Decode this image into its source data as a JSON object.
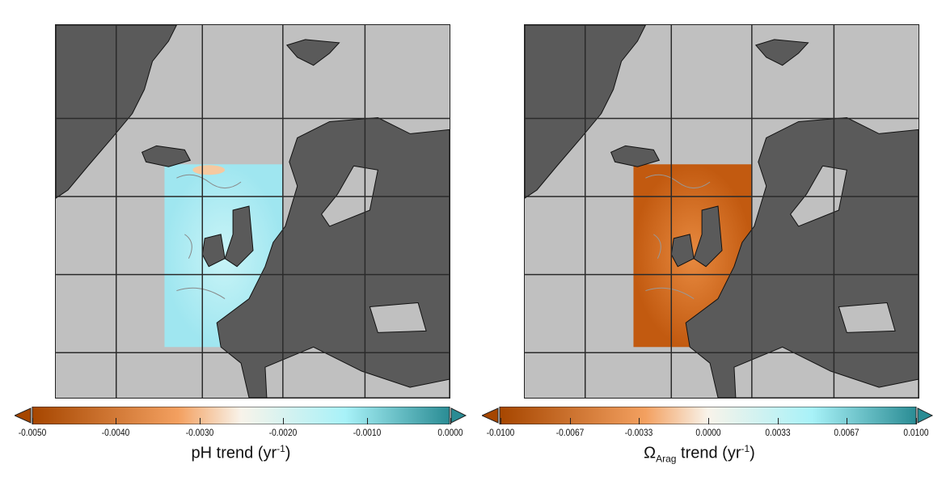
{
  "colors": {
    "ocean": "#c0c0c0",
    "land": "#5a5a5a",
    "grid": "#2a2a2a",
    "orange_dark": "#b04a00",
    "orange": "#f09a50",
    "neutral": "#f8f4ee",
    "cyan": "#a6f0f8",
    "teal_dark": "#2a8c94"
  },
  "panels": [
    {
      "colorbar": {
        "ticks": [
          "-0.0050",
          "-0.0040",
          "-0.0030",
          "-0.0020",
          "-0.0010",
          "0.0000"
        ],
        "min": -0.005,
        "max": 0.0,
        "extend": "both"
      },
      "title": {
        "main": "pH trend (yr",
        "sup": "-1",
        "close": ")"
      },
      "field_tone": "light cyan with pale orange patches"
    },
    {
      "colorbar": {
        "ticks": [
          "-0.0100",
          "-0.0067",
          "-0.0033",
          "0.0000",
          "0.0033",
          "0.0067",
          "0.0100"
        ],
        "min": -0.01,
        "max": 0.01,
        "extend": "both"
      },
      "title": {
        "main": "Ω",
        "sub": "Arag",
        "rest": " trend (yr",
        "sup": "-1",
        "close": ")"
      },
      "field_tone": "orange"
    }
  ]
}
